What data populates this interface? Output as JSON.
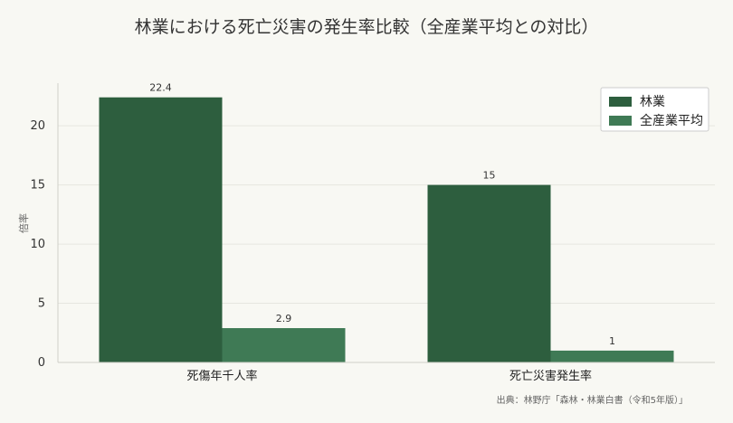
{
  "chart_data": {
    "type": "bar",
    "title": "林業における死亡災害の発生率比較（全産業平均との対比）",
    "ylabel": "倍率",
    "xlabel": "",
    "categories": [
      "死傷年千人率",
      "死亡災害発生率"
    ],
    "series": [
      {
        "name": "林業",
        "values": [
          22.4,
          15
        ],
        "color": "#2d5e3e"
      },
      {
        "name": "全産業平均",
        "values": [
          2.9,
          1
        ],
        "color": "#3f7a55"
      }
    ],
    "data_labels": [
      [
        "22.4",
        "15"
      ],
      [
        "2.9",
        "1"
      ]
    ],
    "ylim": [
      0,
      23.6
    ],
    "yticks": [
      0,
      5,
      10,
      15,
      20
    ],
    "grid": true,
    "legend_position": "top-right",
    "source": "出典：林野庁「森林・林業白書（令和5年版）」"
  }
}
